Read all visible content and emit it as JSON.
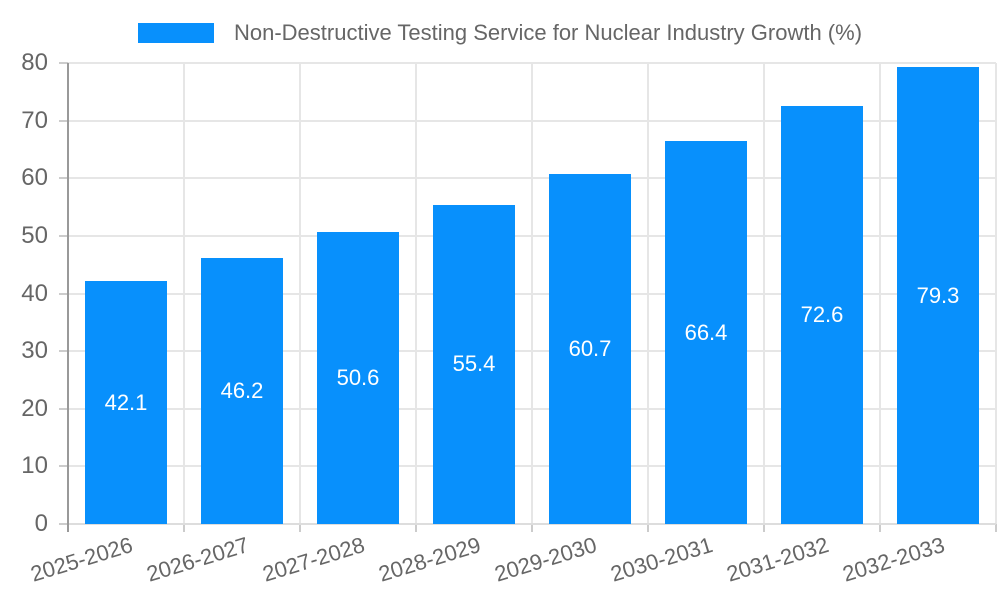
{
  "legend": {
    "label": "Non-Destructive Testing Service for Nuclear Industry Growth (%)"
  },
  "chart_data": {
    "type": "bar",
    "title": "Non-Destructive Testing Service for Nuclear Industry Growth (%)",
    "categories": [
      "2025-2026",
      "2026-2027",
      "2027-2028",
      "2028-2029",
      "2029-2030",
      "2030-2031",
      "2031-2032",
      "2032-2033"
    ],
    "values": [
      42.1,
      46.2,
      50.6,
      55.4,
      60.7,
      66.4,
      72.6,
      79.3
    ],
    "value_labels": [
      "42.1",
      "46.2",
      "50.6",
      "55.4",
      "60.7",
      "66.4",
      "72.6",
      "79.3"
    ],
    "ylim": [
      0,
      80
    ],
    "yticks": [
      0,
      10,
      20,
      30,
      40,
      50,
      60,
      70,
      80
    ],
    "grid": true,
    "legend_position": "top",
    "x_label_rotation_deg": -17,
    "colors": {
      "bar": "#0890FC",
      "bar_label": "#FFFFFF",
      "axis_text": "#666666",
      "grid_line": "#E6E6E6",
      "axis_line": "#999999",
      "tick": "#CCCCCC",
      "x_axis_line": "#DDDDDD",
      "background": "#FFFFFF"
    }
  }
}
